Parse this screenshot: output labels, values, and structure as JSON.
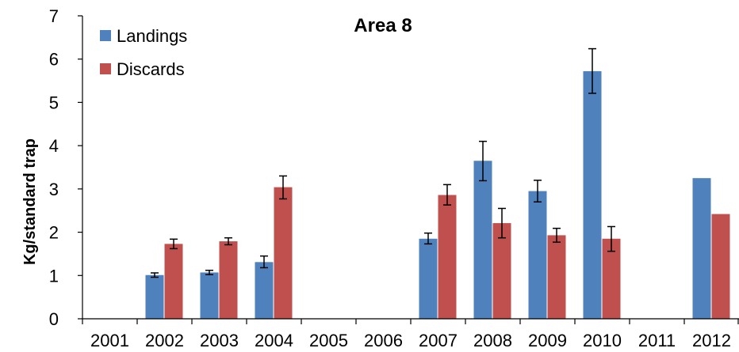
{
  "chart_data": {
    "type": "bar",
    "title": "Area 8",
    "xlabel": "",
    "ylabel": "Kg/standard trap",
    "ylim": [
      0,
      7
    ],
    "yticks": [
      "0",
      "1",
      "2",
      "3",
      "4",
      "5",
      "6",
      "7"
    ],
    "grid": false,
    "legend_position": "top-left",
    "categories": [
      "2001",
      "2002",
      "2003",
      "2004",
      "2005",
      "2006",
      "2007",
      "2008",
      "2009",
      "2010",
      "2011",
      "2012"
    ],
    "series": [
      {
        "name": "Landings",
        "color": "#4F81BD",
        "values": [
          null,
          1.01,
          1.07,
          1.31,
          null,
          null,
          1.85,
          3.65,
          2.95,
          5.72,
          null,
          3.25
        ],
        "error_low": [
          null,
          0.96,
          1.02,
          1.18,
          null,
          null,
          1.73,
          3.19,
          2.7,
          5.21,
          null,
          null
        ],
        "error_high": [
          null,
          1.06,
          1.12,
          1.45,
          null,
          null,
          1.98,
          4.1,
          3.2,
          6.24,
          null,
          null
        ]
      },
      {
        "name": "Discards",
        "color": "#C0504D",
        "values": [
          null,
          1.73,
          1.79,
          3.04,
          null,
          null,
          2.86,
          2.21,
          1.93,
          1.85,
          null,
          2.42
        ],
        "error_low": [
          null,
          1.62,
          1.71,
          2.77,
          null,
          null,
          2.63,
          1.87,
          1.77,
          1.56,
          null,
          null
        ],
        "error_high": [
          null,
          1.84,
          1.87,
          3.3,
          null,
          null,
          3.1,
          2.55,
          2.09,
          2.13,
          null,
          null
        ]
      }
    ]
  }
}
